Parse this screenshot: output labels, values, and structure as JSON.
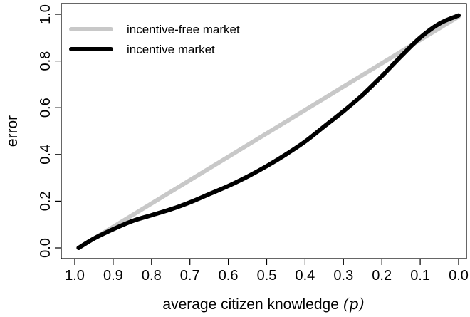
{
  "chart_data": {
    "type": "line",
    "xlabel_prefix": "average citizen knowledge ",
    "xlabel_math": "(p)",
    "ylabel": "error",
    "x_reversed": true,
    "xlim": [
      1.0,
      0.0
    ],
    "ylim": [
      0.0,
      1.0
    ],
    "x_ticks": [
      "1.0",
      "0.9",
      "0.8",
      "0.7",
      "0.6",
      "0.5",
      "0.4",
      "0.3",
      "0.2",
      "0.1",
      "0.0"
    ],
    "y_ticks": [
      "0.0",
      "0.2",
      "0.4",
      "0.6",
      "0.8",
      "1.0"
    ],
    "legend_position": "top-left",
    "grid": false,
    "series": [
      {
        "name": "incentive-free market",
        "color": "#c8c8c8",
        "x": [
          0.99,
          0.0
        ],
        "y": [
          0.0,
          0.99
        ]
      },
      {
        "name": "incentive market",
        "color": "#000000",
        "x": [
          0.99,
          0.95,
          0.9,
          0.85,
          0.8,
          0.75,
          0.7,
          0.65,
          0.6,
          0.55,
          0.5,
          0.45,
          0.4,
          0.35,
          0.3,
          0.25,
          0.2,
          0.15,
          0.1,
          0.05,
          0.0
        ],
        "y": [
          0.0,
          0.04,
          0.08,
          0.115,
          0.14,
          0.165,
          0.195,
          0.23,
          0.265,
          0.305,
          0.35,
          0.4,
          0.455,
          0.52,
          0.585,
          0.655,
          0.735,
          0.82,
          0.9,
          0.96,
          0.995
        ]
      }
    ]
  }
}
